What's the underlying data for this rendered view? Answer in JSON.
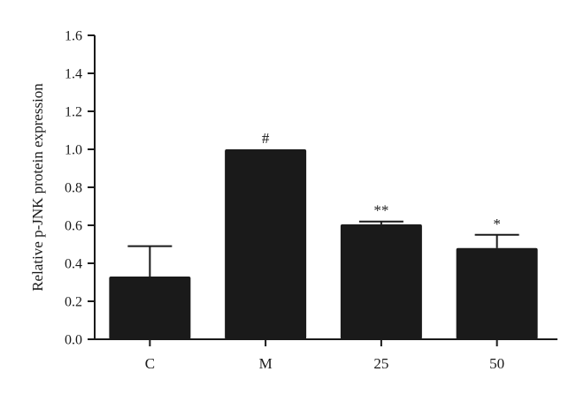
{
  "chart_data": {
    "type": "bar",
    "title": "",
    "xlabel": "",
    "ylabel": "Relative p-JNK protein expression",
    "ylim": [
      0,
      1.6
    ],
    "yticks": [
      "0.0",
      "0.2",
      "0.4",
      "0.6",
      "0.8",
      "1.0",
      "1.2",
      "1.4",
      "1.6"
    ],
    "categories": [
      "C",
      "M",
      "25",
      "50"
    ],
    "values": [
      0.33,
      1.0,
      0.605,
      0.48
    ],
    "error_upper": [
      0.16,
      0.0,
      0.015,
      0.07
    ],
    "annotations": [
      "",
      "#",
      "**",
      "*"
    ],
    "grid": false,
    "bar_color": "#1a1a1a",
    "axis_color": "#1a1a1a"
  }
}
